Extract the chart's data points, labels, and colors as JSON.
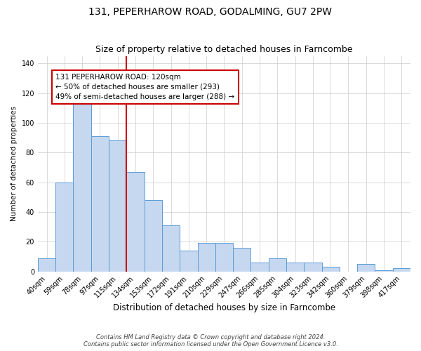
{
  "title": "131, PEPERHAROW ROAD, GODALMING, GU7 2PW",
  "subtitle": "Size of property relative to detached houses in Farncombe",
  "xlabel": "Distribution of detached houses by size in Farncombe",
  "ylabel": "Number of detached properties",
  "categories": [
    "40sqm",
    "59sqm",
    "78sqm",
    "97sqm",
    "115sqm",
    "134sqm",
    "153sqm",
    "172sqm",
    "191sqm",
    "210sqm",
    "229sqm",
    "247sqm",
    "266sqm",
    "285sqm",
    "304sqm",
    "323sqm",
    "342sqm",
    "360sqm",
    "379sqm",
    "398sqm",
    "417sqm"
  ],
  "values": [
    9,
    60,
    116,
    91,
    88,
    67,
    48,
    31,
    14,
    19,
    19,
    16,
    6,
    9,
    6,
    6,
    3,
    0,
    5,
    1,
    2
  ],
  "bar_color": "#c5d8f0",
  "bar_edge_color": "#5b9bd5",
  "vline_x_idx": 4.5,
  "vline_color": "#cc0000",
  "annotation_line1": "131 PEPERHAROW ROAD: 120sqm",
  "annotation_line2": "← 50% of detached houses are smaller (293)",
  "annotation_line3": "49% of semi-detached houses are larger (288) →",
  "annotation_box_color": "#cc0000",
  "ylim": [
    0,
    145
  ],
  "yticks": [
    0,
    20,
    40,
    60,
    80,
    100,
    120,
    140
  ],
  "footnote1": "Contains HM Land Registry data © Crown copyright and database right 2024.",
  "footnote2": "Contains public sector information licensed under the Open Government Licence v3.0.",
  "bg_color": "#ffffff",
  "grid_color": "#cccccc",
  "title_fontsize": 10,
  "subtitle_fontsize": 9,
  "xlabel_fontsize": 8.5,
  "ylabel_fontsize": 7.5,
  "tick_fontsize": 7,
  "annotation_fontsize": 7.5,
  "footnote_fontsize": 6
}
